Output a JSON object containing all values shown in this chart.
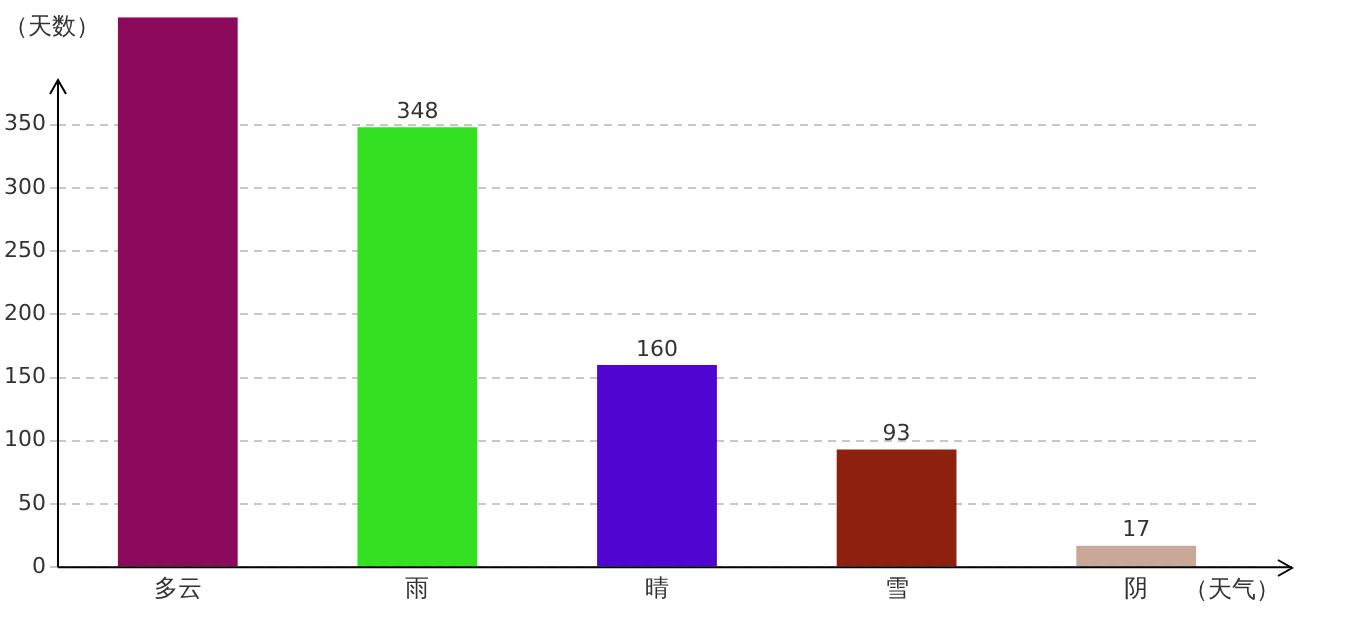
{
  "chart_data": {
    "type": "bar",
    "ylabel": "（天数）",
    "xlabel": "（天气）",
    "categories": [
      "多云",
      "雨",
      "晴",
      "雪",
      "阴"
    ],
    "values": [
      435,
      348,
      160,
      93,
      17
    ],
    "colors": [
      "#8b0a5c",
      "#33e022",
      "#5005d0",
      "#8e2010",
      "#c8a898"
    ],
    "value_labels": [
      null,
      "348",
      "160",
      "93",
      "17"
    ],
    "ylim": [
      0,
      435
    ],
    "yticks": [
      0,
      50,
      100,
      150,
      200,
      250,
      300,
      350
    ],
    "grid": "y"
  }
}
